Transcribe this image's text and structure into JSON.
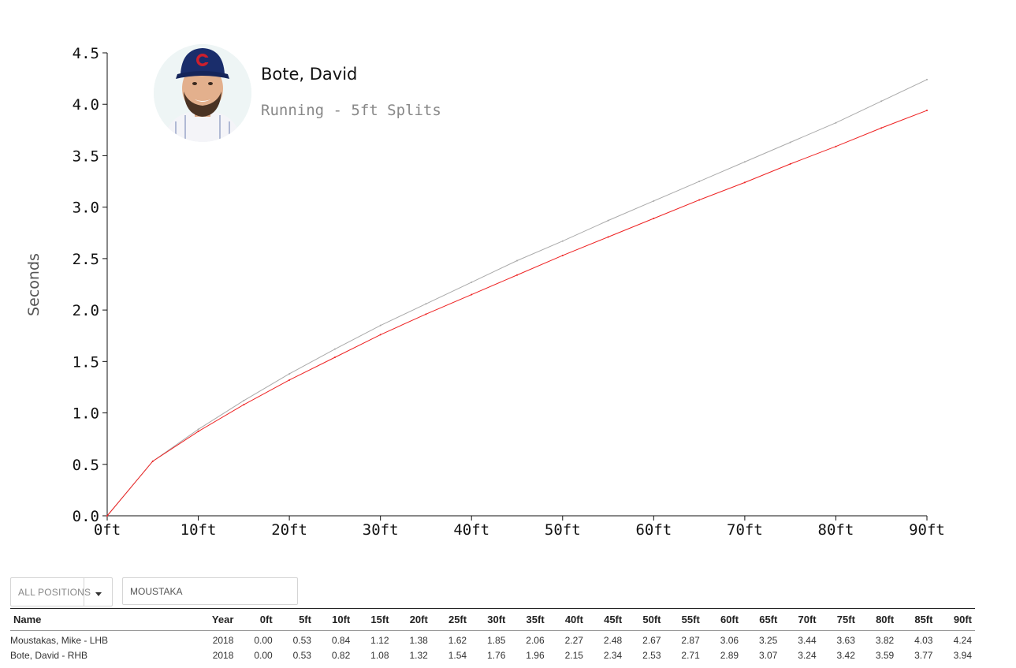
{
  "player": {
    "name": "Bote, David",
    "subtitle": "Running - 5ft Splits",
    "avatar_icon": "player-headshot"
  },
  "chart_data": {
    "type": "line",
    "x": [
      "0ft",
      "5ft",
      "10ft",
      "15ft",
      "20ft",
      "25ft",
      "30ft",
      "35ft",
      "40ft",
      "45ft",
      "50ft",
      "55ft",
      "60ft",
      "65ft",
      "70ft",
      "75ft",
      "80ft",
      "85ft",
      "90ft"
    ],
    "x_ticks": [
      "0ft",
      "10ft",
      "20ft",
      "30ft",
      "40ft",
      "50ft",
      "60ft",
      "70ft",
      "80ft",
      "90ft"
    ],
    "xlim": [
      0,
      90
    ],
    "ylabel": "Seconds",
    "ylim": [
      0,
      4.5
    ],
    "y_ticks": [
      "0.0",
      "0.5",
      "1.0",
      "1.5",
      "2.0",
      "2.5",
      "3.0",
      "3.5",
      "4.0",
      "4.5"
    ],
    "grid": false,
    "series": [
      {
        "color": "#aaaaaa",
        "values": [
          0.0,
          0.53,
          0.84,
          1.12,
          1.38,
          1.62,
          1.85,
          2.06,
          2.27,
          2.48,
          2.67,
          2.87,
          3.06,
          3.25,
          3.44,
          3.63,
          3.82,
          4.03,
          4.24
        ]
      },
      {
        "color": "#ee2222",
        "values": [
          0.0,
          0.53,
          0.82,
          1.08,
          1.32,
          1.54,
          1.76,
          1.96,
          2.15,
          2.34,
          2.53,
          2.71,
          2.89,
          3.07,
          3.24,
          3.42,
          3.59,
          3.77,
          3.94
        ]
      }
    ]
  },
  "filters": {
    "position_label": "ALL POSITIONS",
    "caret_icon": "caret-down-icon",
    "search_value": "MOUSTAKA"
  },
  "table": {
    "headers": [
      "Name",
      "Year",
      "0ft",
      "5ft",
      "10ft",
      "15ft",
      "20ft",
      "25ft",
      "30ft",
      "35ft",
      "40ft",
      "45ft",
      "50ft",
      "55ft",
      "60ft",
      "65ft",
      "70ft",
      "75ft",
      "80ft",
      "85ft",
      "90ft"
    ],
    "rows": [
      [
        "Moustakas, Mike - LHB",
        "2018",
        "0.00",
        "0.53",
        "0.84",
        "1.12",
        "1.38",
        "1.62",
        "1.85",
        "2.06",
        "2.27",
        "2.48",
        "2.67",
        "2.87",
        "3.06",
        "3.25",
        "3.44",
        "3.63",
        "3.82",
        "4.03",
        "4.24"
      ],
      [
        "Bote, David - RHB",
        "2018",
        "0.00",
        "0.53",
        "0.82",
        "1.08",
        "1.32",
        "1.54",
        "1.76",
        "1.96",
        "2.15",
        "2.34",
        "2.53",
        "2.71",
        "2.89",
        "3.07",
        "3.24",
        "3.42",
        "3.59",
        "3.77",
        "3.94"
      ]
    ]
  }
}
